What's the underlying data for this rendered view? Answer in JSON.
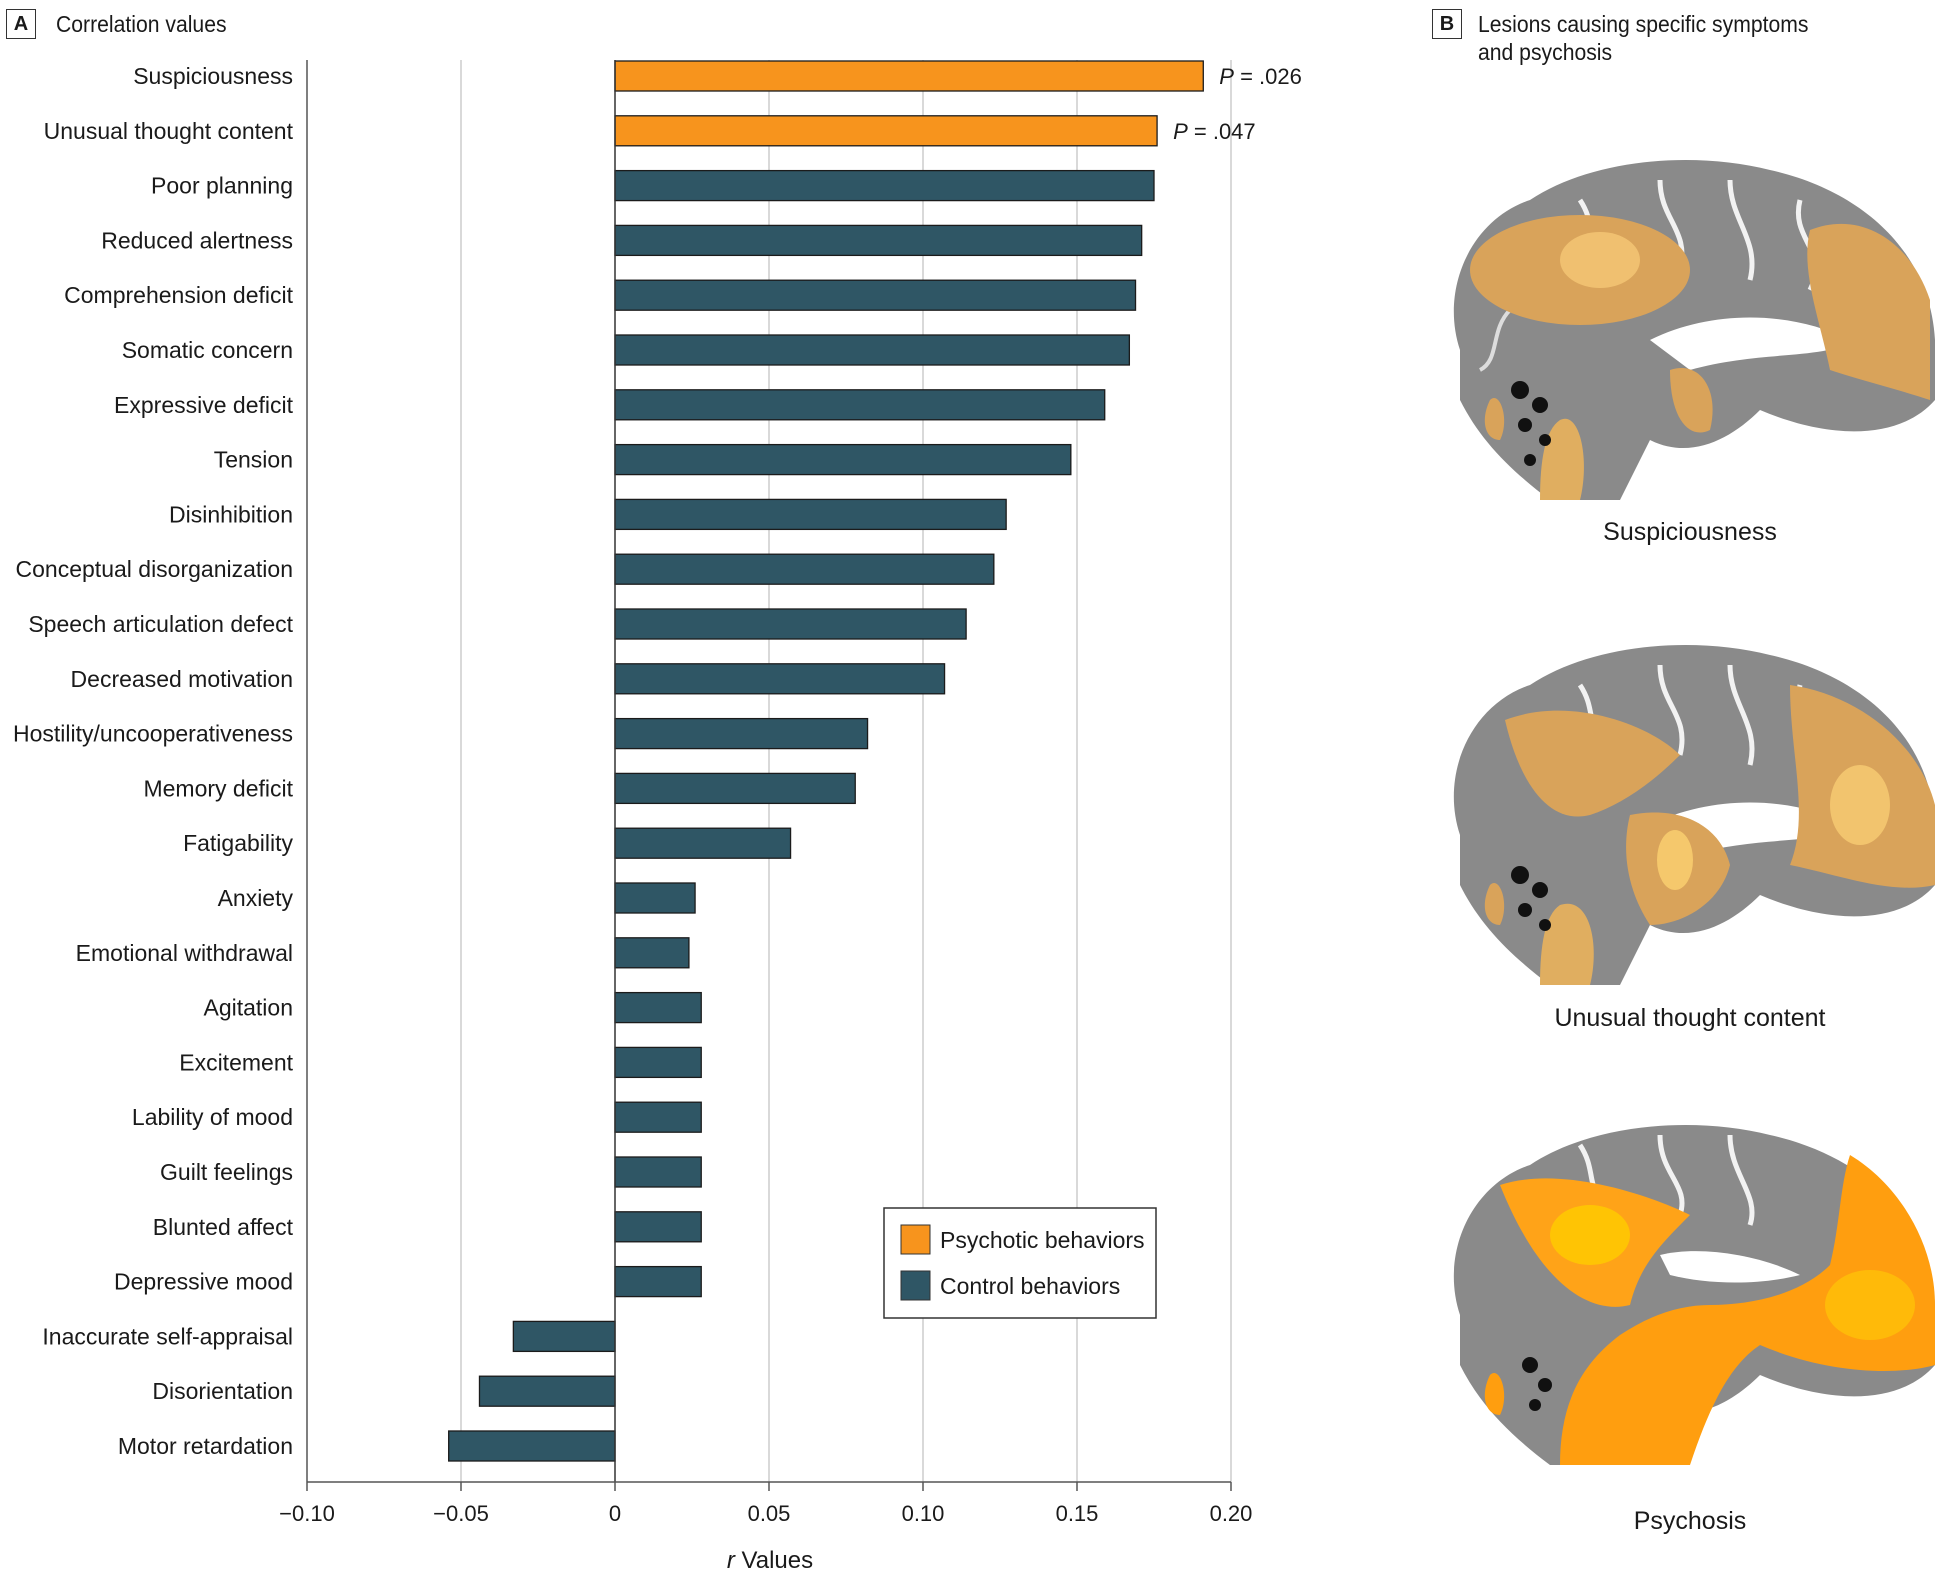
{
  "panel_a": {
    "tag": "A",
    "title": "Correlation values"
  },
  "panel_b": {
    "tag": "B",
    "title_line1": "Lesions causing specific symptoms",
    "title_line2": "and psychosis",
    "images": [
      {
        "caption": "Suspiciousness",
        "overlay": "muted-orange",
        "icon": "brain-sagittal-lesion-map"
      },
      {
        "caption": "Unusual thought content",
        "overlay": "muted-orange",
        "icon": "brain-sagittal-lesion-map"
      },
      {
        "caption": "Psychosis",
        "overlay": "bright-orange",
        "icon": "brain-sagittal-lesion-map"
      }
    ]
  },
  "colors": {
    "psychotic": "#F7941D",
    "control": "#2F5665",
    "grid": "#D9D9D9",
    "axis": "#555555",
    "lesion_muted": "#D9A35A",
    "lesion_bright": "#FF9E0F"
  },
  "chart_data": {
    "type": "bar",
    "orientation": "horizontal",
    "title": "Correlation values",
    "xlabel_italic": "r",
    "xlabel": " Values",
    "xlim": [
      -0.1,
      0.2
    ],
    "xticks": [
      -0.1,
      -0.05,
      0,
      0.05,
      0.1,
      0.15,
      0.2
    ],
    "xtick_labels": [
      "−0.10",
      "−0.05",
      "0",
      "0.05",
      "0.10",
      "0.15",
      "0.20"
    ],
    "grid": "vertical",
    "legend": {
      "placement": "lower-right",
      "entries": [
        {
          "label": "Psychotic behaviors",
          "group": "psychotic"
        },
        {
          "label": "Control behaviors",
          "group": "control"
        }
      ]
    },
    "categories": [
      "Suspiciousness",
      "Unusual thought content",
      "Poor planning",
      "Reduced alertness",
      "Comprehension deficit",
      "Somatic concern",
      "Expressive deficit",
      "Tension",
      "Disinhibition",
      "Conceptual disorganization",
      "Speech articulation defect",
      "Decreased motivation",
      "Hostility/uncooperativeness",
      "Memory deficit",
      "Fatigability",
      "Anxiety",
      "Emotional withdrawal",
      "Agitation",
      "Excitement",
      "Lability of mood",
      "Guilt feelings",
      "Blunted affect",
      "Depressive mood",
      "Inaccurate self-appraisal",
      "Disorientation",
      "Motor retardation"
    ],
    "values": [
      0.191,
      0.176,
      0.175,
      0.171,
      0.169,
      0.167,
      0.159,
      0.148,
      0.127,
      0.123,
      0.114,
      0.107,
      0.082,
      0.078,
      0.057,
      0.026,
      0.024,
      0.028,
      0.028,
      0.028,
      0.028,
      0.028,
      0.028,
      -0.033,
      -0.044,
      -0.054
    ],
    "groups": [
      "psychotic",
      "psychotic",
      "control",
      "control",
      "control",
      "control",
      "control",
      "control",
      "control",
      "control",
      "control",
      "control",
      "control",
      "control",
      "control",
      "control",
      "control",
      "control",
      "control",
      "control",
      "control",
      "control",
      "control",
      "control",
      "control",
      "control"
    ],
    "annotations": [
      {
        "category": "Suspiciousness",
        "p_italic": "P",
        "text": " = .026"
      },
      {
        "category": "Unusual thought content",
        "p_italic": "P",
        "text": " = .047"
      }
    ]
  }
}
